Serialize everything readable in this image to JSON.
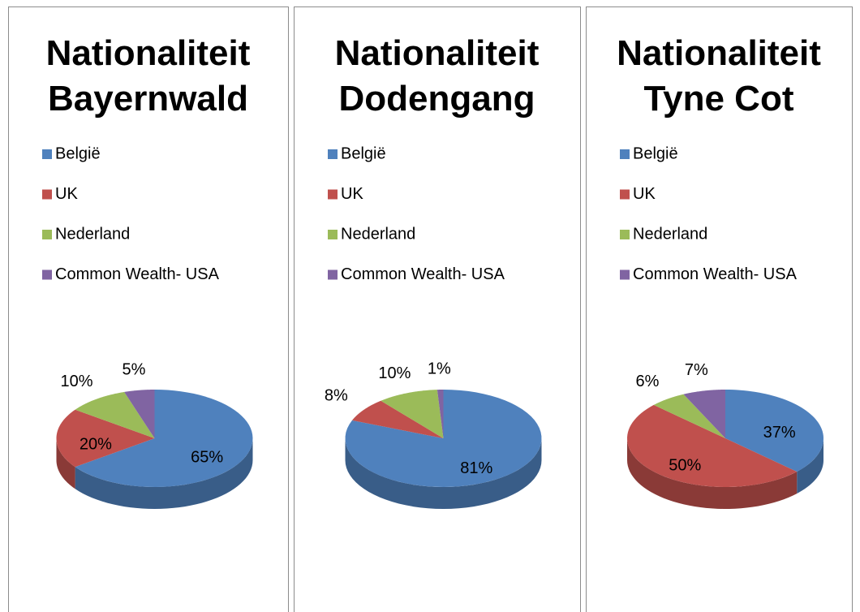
{
  "chart_data": [
    {
      "type": "pie",
      "title": "Nationaliteit Bayernwald",
      "categories": [
        "België",
        "UK",
        "Nederland",
        "Common Wealth- USA"
      ],
      "values": [
        65,
        20,
        10,
        5
      ],
      "value_labels": [
        "65%",
        "20%",
        "10%",
        "5%"
      ],
      "colors": [
        "#4f81bd",
        "#c0504d",
        "#9bbb59",
        "#8064a2"
      ]
    },
    {
      "type": "pie",
      "title": "Nationaliteit Dodengang",
      "categories": [
        "België",
        "UK",
        "Nederland",
        "Common Wealth- USA"
      ],
      "values": [
        81,
        8,
        10,
        1
      ],
      "value_labels": [
        "81%",
        "8%",
        "10%",
        "1%"
      ],
      "colors": [
        "#4f81bd",
        "#c0504d",
        "#9bbb59",
        "#8064a2"
      ]
    },
    {
      "type": "pie",
      "title": "Nationaliteit Tyne Cot",
      "categories": [
        "België",
        "UK",
        "Nederland",
        "Common Wealth- USA"
      ],
      "values": [
        37,
        50,
        6,
        7
      ],
      "value_labels": [
        "37%",
        "50%",
        "6%",
        "7%"
      ],
      "colors": [
        "#4f81bd",
        "#c0504d",
        "#9bbb59",
        "#8064a2"
      ]
    }
  ]
}
